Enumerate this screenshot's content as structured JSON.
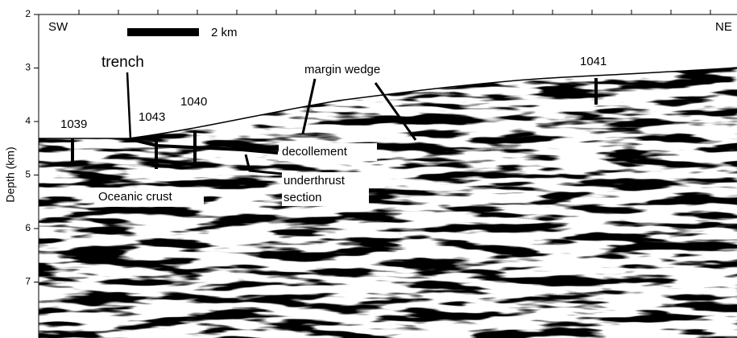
{
  "axis": {
    "label": "Depth (km)",
    "ylim": [
      2,
      8
    ],
    "yticks": [
      2,
      3,
      4,
      5,
      6,
      7
    ]
  },
  "labels": {
    "sw": "SW",
    "ne": "NE",
    "scale": "2 km",
    "trench": "trench",
    "margin_wedge": "margin wedge",
    "site_1041": "1041",
    "site_1039": "1039",
    "site_1043": "1043",
    "site_1040": "1040",
    "decollement": "decollement",
    "underthrust": [
      "underthrust",
      "section"
    ],
    "oceanic_crust": "Oceanic crust"
  }
}
